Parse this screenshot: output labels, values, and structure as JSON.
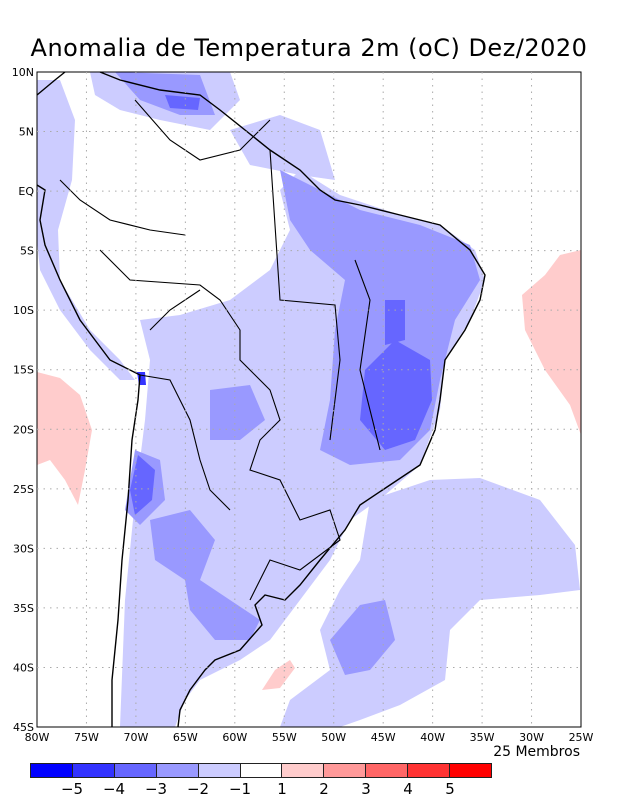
{
  "title": "Anomalia de Temperatura 2m (oC) Dez/2020",
  "lat_ticks": [
    "10N",
    "5N",
    "EQ",
    "5S",
    "10S",
    "15S",
    "20S",
    "25S",
    "30S",
    "35S",
    "40S",
    "45S"
  ],
  "lon_ticks": [
    "80W",
    "75W",
    "70W",
    "65W",
    "60W",
    "55W",
    "50W",
    "45W",
    "40W",
    "35W",
    "30W",
    "25W"
  ],
  "members_label": "25 Membros",
  "colorbar": {
    "colors": [
      "#0000ff",
      "#3333ff",
      "#6666ff",
      "#9999ff",
      "#ccccff",
      "#ffffff",
      "#ffcccc",
      "#ff9999",
      "#ff6666",
      "#ff3333",
      "#ff0000"
    ],
    "labels": [
      "−5",
      "−4",
      "−3",
      "−2",
      "−1",
      "1",
      "2",
      "3",
      "4",
      "5"
    ]
  }
}
